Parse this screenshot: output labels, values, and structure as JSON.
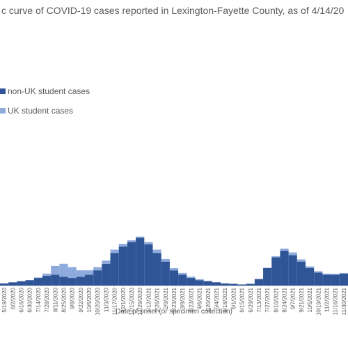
{
  "chart_data": {
    "type": "stacked-bar",
    "title": "c curve of COVID-19 cases reported in Lexington-Fayette County, as of 4/14/20",
    "x_label": "Date of onset (or specimen collection)",
    "categories": [
      "5/19/2020",
      "6/2/2020",
      "6/16/2020",
      "6/30/2020",
      "7/14/2020",
      "7/28/2020",
      "8/11/2020",
      "8/25/2020",
      "9/8/2020",
      "9/22/2020",
      "10/6/2020",
      "10/20/2020",
      "11/3/2020",
      "11/17/2020",
      "12/1/2020",
      "12/15/2020",
      "12/29/2020",
      "1/12/2021",
      "1/26/2021",
      "2/9/2021",
      "2/23/2021",
      "3/9/2021",
      "3/23/2021",
      "4/6/2021",
      "4/20/2021",
      "5/4/2021",
      "5/18/2021",
      "6/1/2021",
      "6/15/2021",
      "6/29/2021",
      "7/13/2021",
      "7/27/2021",
      "8/10/2021",
      "8/24/2021",
      "9/7/2021",
      "9/21/2021",
      "10/5/2021",
      "10/19/2021",
      "11/2/2021",
      "11/16/2021",
      "11/30/2021"
    ],
    "series": [
      {
        "name": "non-UK student cases",
        "color": "#2f5597",
        "values": [
          10,
          15,
          20,
          25,
          35,
          45,
          50,
          40,
          35,
          40,
          50,
          70,
          100,
          150,
          180,
          200,
          220,
          190,
          150,
          110,
          70,
          50,
          35,
          25,
          20,
          15,
          10,
          8,
          5,
          8,
          30,
          80,
          130,
          160,
          140,
          110,
          80,
          60,
          50,
          50,
          55
        ]
      },
      {
        "name": "UK student cases",
        "color": "#8faadc",
        "values": [
          0,
          0,
          0,
          0,
          2,
          10,
          40,
          60,
          50,
          30,
          20,
          15,
          15,
          15,
          12,
          8,
          5,
          10,
          15,
          12,
          10,
          8,
          6,
          4,
          2,
          1,
          0,
          0,
          0,
          0,
          0,
          2,
          5,
          10,
          12,
          10,
          8,
          6,
          5,
          4,
          3
        ]
      }
    ],
    "ylim": [
      0,
      320
    ],
    "legend": "top-left"
  }
}
